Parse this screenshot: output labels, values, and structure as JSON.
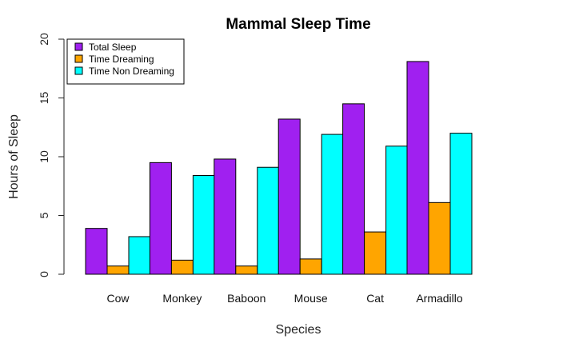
{
  "chart_data": {
    "type": "bar",
    "title": "Mammal Sleep Time",
    "xlabel": "Species",
    "ylabel": "Hours of Sleep",
    "categories": [
      "Cow",
      "Monkey",
      "Baboon",
      "Mouse",
      "Cat",
      "Armadillo"
    ],
    "series": [
      {
        "name": "Total Sleep",
        "color": "#A020F0",
        "values": [
          3.9,
          9.5,
          9.8,
          13.2,
          14.5,
          18.1
        ]
      },
      {
        "name": "Time Dreaming",
        "color": "#FFA500",
        "values": [
          0.7,
          1.2,
          0.7,
          1.3,
          3.6,
          6.1
        ]
      },
      {
        "name": "Time Non Dreaming",
        "color": "#00FFFF",
        "values": [
          3.2,
          8.4,
          9.1,
          11.9,
          10.9,
          12.0
        ]
      }
    ],
    "ylim": [
      0,
      20
    ],
    "yticks": [
      0,
      5,
      10,
      15,
      20
    ],
    "legend_position": "top-left",
    "grid": false
  }
}
